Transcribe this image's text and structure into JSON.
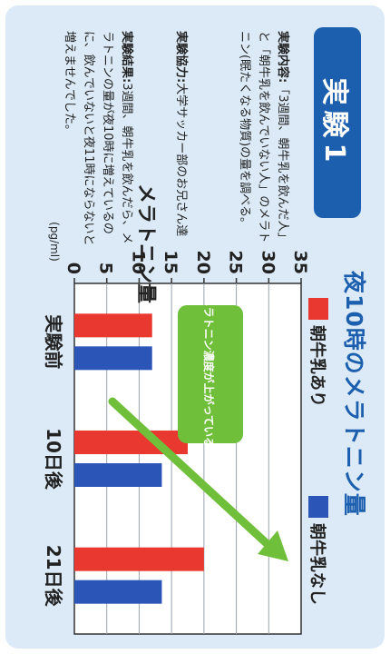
{
  "chart_data": {
    "type": "bar",
    "title": "夜10時のメラトニン量",
    "ylabel": "メラトニン量",
    "y_unit": "(pg/ml)",
    "ylim": [
      0,
      35
    ],
    "y_ticks": [
      0,
      5,
      10,
      15,
      20,
      25,
      30,
      35
    ],
    "categories": [
      "実験前",
      "10日後",
      "21日後"
    ],
    "series": [
      {
        "name": "朝牛乳あり",
        "color": "#e8382f",
        "values": [
          12,
          17.5,
          20
        ]
      },
      {
        "name": "朝牛乳なし",
        "color": "#2b56b8",
        "values": [
          12,
          13.5,
          13.5
        ]
      }
    ],
    "annotation": "メラトニン濃度が上がっている!",
    "annotation_color": "#6fbf3a"
  },
  "experiment": {
    "badge": "実験1",
    "content_label": "実験内容:",
    "content_text": "「3週間、朝牛乳を飲んだ人」と「朝牛乳を飲んでいない人」のメラトニン(眠たくなる物質)の量を調べる。",
    "cooperation_label": "実験協力:",
    "cooperation_text": "大学サッカー部のお兄さん達",
    "result_label": "実験結果:",
    "result_text": "3週間、朝牛乳を飲んだら、メラトニンの量が夜10時に増えているのに、飲んでいないと夜11時にならないと増えませんでした。"
  },
  "colors": {
    "accent": "#1c5fae",
    "card_bg": "#dbeaf6"
  }
}
